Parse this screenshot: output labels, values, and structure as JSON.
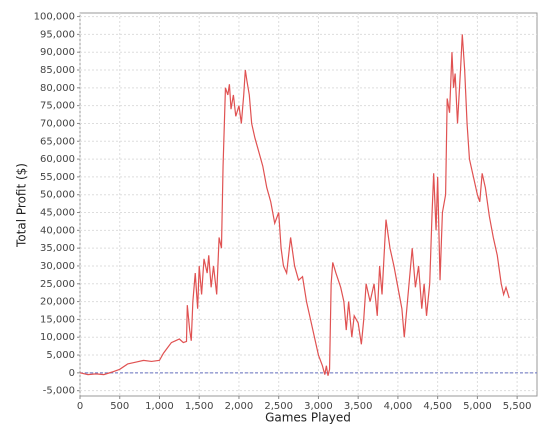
{
  "chart_data": {
    "type": "line",
    "x_label": "Games Played",
    "y_label": "Total Profit ($)",
    "color": "#e05252",
    "grid": true,
    "xlim": [
      0,
      5750
    ],
    "ylim": [
      -6500,
      101000
    ],
    "xticks": [
      0,
      500,
      {
        "value": 1000,
        "label": "1,000"
      },
      {
        "value": 1500,
        "label": "1,500"
      },
      {
        "value": 2000,
        "label": "2,000"
      },
      {
        "value": 2500,
        "label": "2,500"
      },
      {
        "value": 3000,
        "label": "3,000"
      },
      {
        "value": 3500,
        "label": "3,500"
      },
      {
        "value": 4000,
        "label": "4,000"
      },
      {
        "value": 4500,
        "label": "4,500"
      },
      {
        "value": 5000,
        "label": "5,000"
      },
      {
        "value": 5500,
        "label": "5,500"
      }
    ],
    "yticks": [
      {
        "value": -5000,
        "label": "-5,000"
      },
      0,
      {
        "value": 5000,
        "label": "5,000"
      },
      {
        "value": 10000,
        "label": "10,000"
      },
      {
        "value": 15000,
        "label": "15,000"
      },
      {
        "value": 20000,
        "label": "20,000"
      },
      {
        "value": 25000,
        "label": "25,000"
      },
      {
        "value": 30000,
        "label": "30,000"
      },
      {
        "value": 35000,
        "label": "35,000"
      },
      {
        "value": 40000,
        "label": "40,000"
      },
      {
        "value": 45000,
        "label": "45,000"
      },
      {
        "value": 50000,
        "label": "50,000"
      },
      {
        "value": 55000,
        "label": "55,000"
      },
      {
        "value": 60000,
        "label": "60,000"
      },
      {
        "value": 65000,
        "label": "65,000"
      },
      {
        "value": 70000,
        "label": "70,000"
      },
      {
        "value": 75000,
        "label": "75,000"
      },
      {
        "value": 80000,
        "label": "80,000"
      },
      {
        "value": 85000,
        "label": "85,000"
      },
      {
        "value": 90000,
        "label": "90,000"
      },
      {
        "value": 95000,
        "label": "95,000"
      },
      {
        "value": 100000,
        "label": "100,000"
      }
    ],
    "x": [
      0,
      100,
      200,
      300,
      400,
      500,
      600,
      700,
      800,
      900,
      1000,
      1050,
      1100,
      1150,
      1200,
      1250,
      1300,
      1340,
      1350,
      1380,
      1400,
      1420,
      1450,
      1480,
      1500,
      1530,
      1560,
      1600,
      1620,
      1650,
      1680,
      1720,
      1750,
      1780,
      1800,
      1830,
      1860,
      1880,
      1900,
      1930,
      1960,
      2000,
      2030,
      2060,
      2080,
      2100,
      2130,
      2160,
      2200,
      2250,
      2300,
      2350,
      2400,
      2450,
      2500,
      2530,
      2560,
      2600,
      2650,
      2700,
      2750,
      2800,
      2850,
      2900,
      2950,
      3000,
      3050,
      3080,
      3100,
      3120,
      3140,
      3160,
      3180,
      3220,
      3280,
      3320,
      3350,
      3380,
      3420,
      3450,
      3500,
      3540,
      3570,
      3600,
      3650,
      3700,
      3740,
      3770,
      3800,
      3850,
      3900,
      3950,
      4000,
      4050,
      4080,
      4120,
      4180,
      4220,
      4260,
      4300,
      4330,
      4360,
      4400,
      4430,
      4450,
      4480,
      4500,
      4530,
      4560,
      4600,
      4620,
      4650,
      4680,
      4700,
      4720,
      4750,
      4790,
      4810,
      4840,
      4870,
      4900,
      4950,
      5000,
      5030,
      5060,
      5100,
      5150,
      5200,
      5250,
      5300,
      5330,
      5360,
      5400
    ],
    "values": [
      0,
      -500,
      -300,
      -500,
      200,
      1000,
      2500,
      3000,
      3500,
      3200,
      3500,
      5500,
      7000,
      8500,
      9000,
      9500,
      8500,
      8800,
      19000,
      12000,
      9000,
      20000,
      28000,
      18000,
      30000,
      22000,
      32000,
      28000,
      33000,
      24000,
      30000,
      22000,
      38000,
      35000,
      58000,
      80000,
      78000,
      81000,
      74000,
      78000,
      72000,
      75000,
      70000,
      78000,
      85000,
      82000,
      78000,
      70000,
      66000,
      62000,
      58000,
      52000,
      48000,
      42000,
      45000,
      35000,
      30000,
      28000,
      38000,
      30000,
      26000,
      27000,
      20000,
      15000,
      10000,
      5000,
      2000,
      -500,
      2000,
      -800,
      1000,
      25000,
      31000,
      28000,
      24000,
      20000,
      12000,
      20000,
      10000,
      16000,
      14000,
      8000,
      15000,
      25000,
      20000,
      25000,
      16000,
      30000,
      22000,
      43000,
      35000,
      30000,
      24000,
      18000,
      10000,
      20000,
      35000,
      24000,
      30000,
      18000,
      25000,
      16000,
      25000,
      45000,
      56000,
      40000,
      55000,
      26000,
      45000,
      50000,
      77000,
      73000,
      90000,
      80000,
      84000,
      70000,
      86000,
      95000,
      85000,
      70000,
      60000,
      55000,
      50000,
      48000,
      56000,
      52000,
      44000,
      38000,
      33000,
      25000,
      22000,
      24000,
      21000
    ]
  }
}
